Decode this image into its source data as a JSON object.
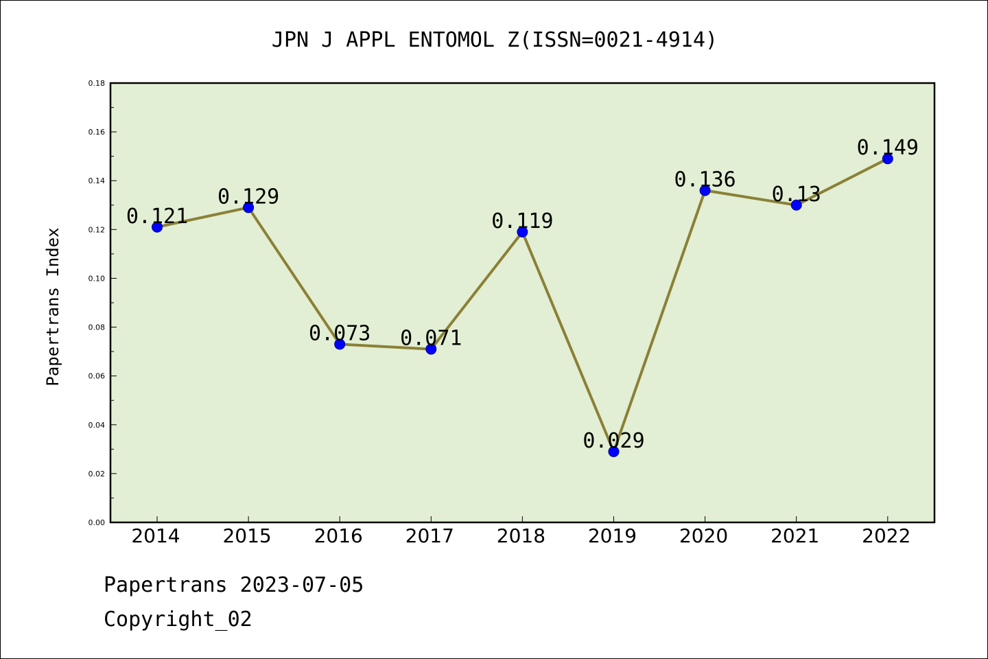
{
  "chart_data": {
    "type": "line",
    "title": "JPN J APPL ENTOMOL Z(ISSN=0021-4914)",
    "xlabel": "",
    "ylabel": "Papertrans Index",
    "categories": [
      "2014",
      "2015",
      "2016",
      "2017",
      "2018",
      "2019",
      "2020",
      "2021",
      "2022"
    ],
    "values": [
      0.121,
      0.129,
      0.073,
      0.071,
      0.119,
      0.029,
      0.136,
      0.13,
      0.149
    ],
    "data_labels": [
      "0.121",
      "0.129",
      "0.073",
      "0.071",
      "0.119",
      "0.029",
      "0.136",
      "0.13",
      "0.149"
    ],
    "ylim": [
      0,
      0.18
    ],
    "yticks": [
      0.0,
      0.02,
      0.04,
      0.06,
      0.08,
      0.1,
      0.12,
      0.14,
      0.16,
      0.18
    ],
    "ytick_labels": [
      "0.00",
      "0.02",
      "0.04",
      "0.06",
      "0.08",
      "0.10",
      "0.12",
      "0.14",
      "0.16",
      "0.18"
    ],
    "grid": false,
    "legend": "none",
    "colors": {
      "line": "#8b8036",
      "marker": "#0000ff",
      "plot_background": "#e2efd4"
    }
  },
  "footer": {
    "line1": "Papertrans 2023-07-05",
    "line2": "Copyright_02"
  }
}
